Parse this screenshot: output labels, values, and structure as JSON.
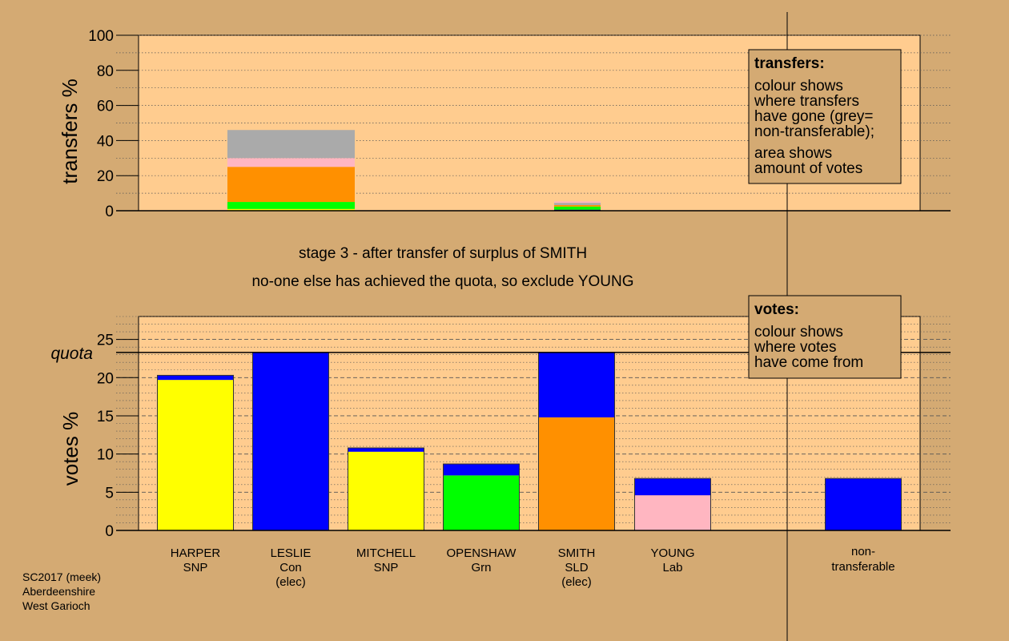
{
  "chart_data": [
    {
      "type": "bar",
      "stacked": true,
      "ylabel": "transfers %",
      "ylim": [
        0,
        100
      ],
      "yticks": [
        0,
        20,
        40,
        60,
        80,
        100
      ],
      "columns": [
        {
          "segments": [
            {
              "value": 1,
              "color": "#ffff00"
            },
            {
              "value": 4,
              "color": "#00ff00"
            },
            {
              "value": 20,
              "color": "#ff9000"
            },
            {
              "value": 5,
              "color": "#ffb6c1"
            },
            {
              "value": 16,
              "color": "#aaaaaa"
            }
          ]
        },
        {
          "segments": [
            {
              "value": 0.6,
              "color": "#000080"
            },
            {
              "value": 1.8,
              "color": "#00ff00"
            },
            {
              "value": 0.8,
              "color": "#ff9000"
            },
            {
              "value": 1.3,
              "color": "#aaaaaa"
            },
            {
              "value": 0.8,
              "color": "#ffb6c1"
            }
          ]
        }
      ],
      "legend": {
        "title": "transfers:",
        "lines": [
          "colour shows",
          "where transfers",
          "have gone (grey=",
          "non-transferable);",
          "area shows",
          "amount of votes"
        ]
      }
    },
    {
      "type": "bar",
      "stacked": true,
      "ylabel": "votes %",
      "ylim": [
        0,
        28
      ],
      "yticks": [
        0,
        5,
        10,
        15,
        20,
        25
      ],
      "quota": 23.3,
      "quota_label": "quota",
      "categories": [
        {
          "name": "HARPER",
          "party": "SNP",
          "note": "",
          "segments": [
            {
              "value": 19.7,
              "color": "#ffff00"
            },
            {
              "value": 0.6,
              "color": "#0000ff"
            }
          ]
        },
        {
          "name": "LESLIE",
          "party": "Con",
          "note": "(elec)",
          "segments": [
            {
              "value": 23.3,
              "color": "#0000ff"
            }
          ]
        },
        {
          "name": "MITCHELL",
          "party": "SNP",
          "note": "",
          "segments": [
            {
              "value": 10.3,
              "color": "#ffff00"
            },
            {
              "value": 0.5,
              "color": "#0000ff"
            }
          ]
        },
        {
          "name": "OPENSHAW",
          "party": "Grn",
          "note": "",
          "segments": [
            {
              "value": 7.2,
              "color": "#00ff00"
            },
            {
              "value": 1.5,
              "color": "#0000ff"
            }
          ]
        },
        {
          "name": "SMITH",
          "party": "SLD",
          "note": "(elec)",
          "segments": [
            {
              "value": 14.8,
              "color": "#ff9000"
            },
            {
              "value": 8.5,
              "color": "#0000ff"
            }
          ]
        },
        {
          "name": "YOUNG",
          "party": "Lab",
          "note": "",
          "segments": [
            {
              "value": 4.6,
              "color": "#ffb6c1"
            },
            {
              "value": 2.2,
              "color": "#0000ff"
            }
          ]
        }
      ],
      "nontransferable": {
        "label_lines": [
          "non-",
          "transferable"
        ],
        "segments": [
          {
            "value": 6.8,
            "color": "#0000ff"
          }
        ]
      },
      "legend": {
        "title": "votes:",
        "lines": [
          "colour shows",
          "where votes",
          "have come from"
        ]
      }
    }
  ],
  "stage_lines": [
    "stage 3 - after transfer of surplus of SMITH",
    "no-one else has achieved the quota, so exclude YOUNG"
  ],
  "footer_lines": [
    "SC2017 (meek)",
    "Aberdeenshire",
    "West Garioch"
  ],
  "colors": {
    "page_bg": "#d4aa73",
    "panel_bg": "#ffcc8f"
  }
}
